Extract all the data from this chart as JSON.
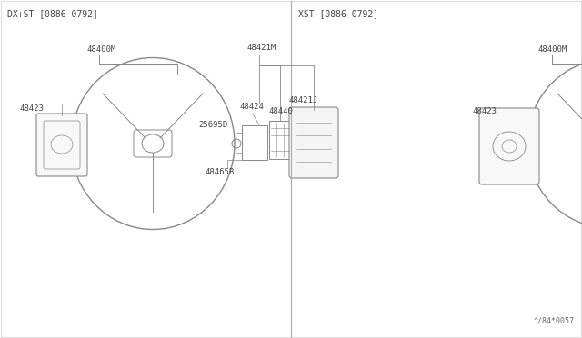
{
  "bg_color": "#ffffff",
  "line_color": "#888888",
  "text_color": "#444444",
  "border_color": "#cccccc",
  "title_left": "DX+ST [0886-0792]",
  "title_right": "XST [0886-0792]",
  "watermark": "^·84×0057",
  "font_size": 6.5,
  "title_font_size": 7.0
}
